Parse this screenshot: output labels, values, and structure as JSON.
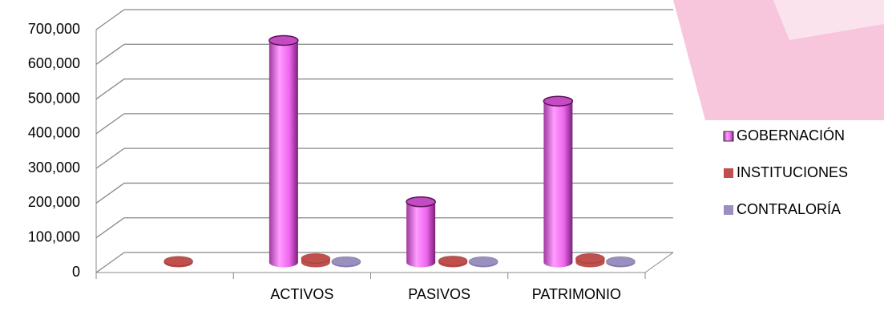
{
  "chart_data": {
    "type": "bar3d",
    "categories": [
      null,
      "ACTIVOS",
      "PASIVOS",
      "PATRIMONIO"
    ],
    "series": [
      {
        "name": "GOBERNACIÓN",
        "color": "#ee77ee",
        "values": [
          null,
          640000,
          175000,
          465000
        ]
      },
      {
        "name": "INSTITUCIONES",
        "color": "#c0504d",
        "values": [
          4000,
          12000,
          5000,
          12000
        ]
      },
      {
        "name": "CONTRALORÍA",
        "color": "#9b8fc0",
        "values": [
          null,
          3000,
          3000,
          3000
        ]
      }
    ],
    "ylim": [
      0,
      700000
    ],
    "yticks": [
      0,
      {
        "value": 100000,
        "label": "100,000"
      },
      {
        "value": 200000,
        "label": "200,000"
      },
      {
        "value": 300000,
        "label": "300,000"
      },
      {
        "value": 400000,
        "label": "400,000"
      },
      {
        "value": 500000,
        "label": "500,000"
      },
      {
        "value": 600000,
        "label": "600,000"
      },
      {
        "value": 700000,
        "label": "700,000"
      }
    ],
    "grid": true,
    "legend": "right"
  }
}
